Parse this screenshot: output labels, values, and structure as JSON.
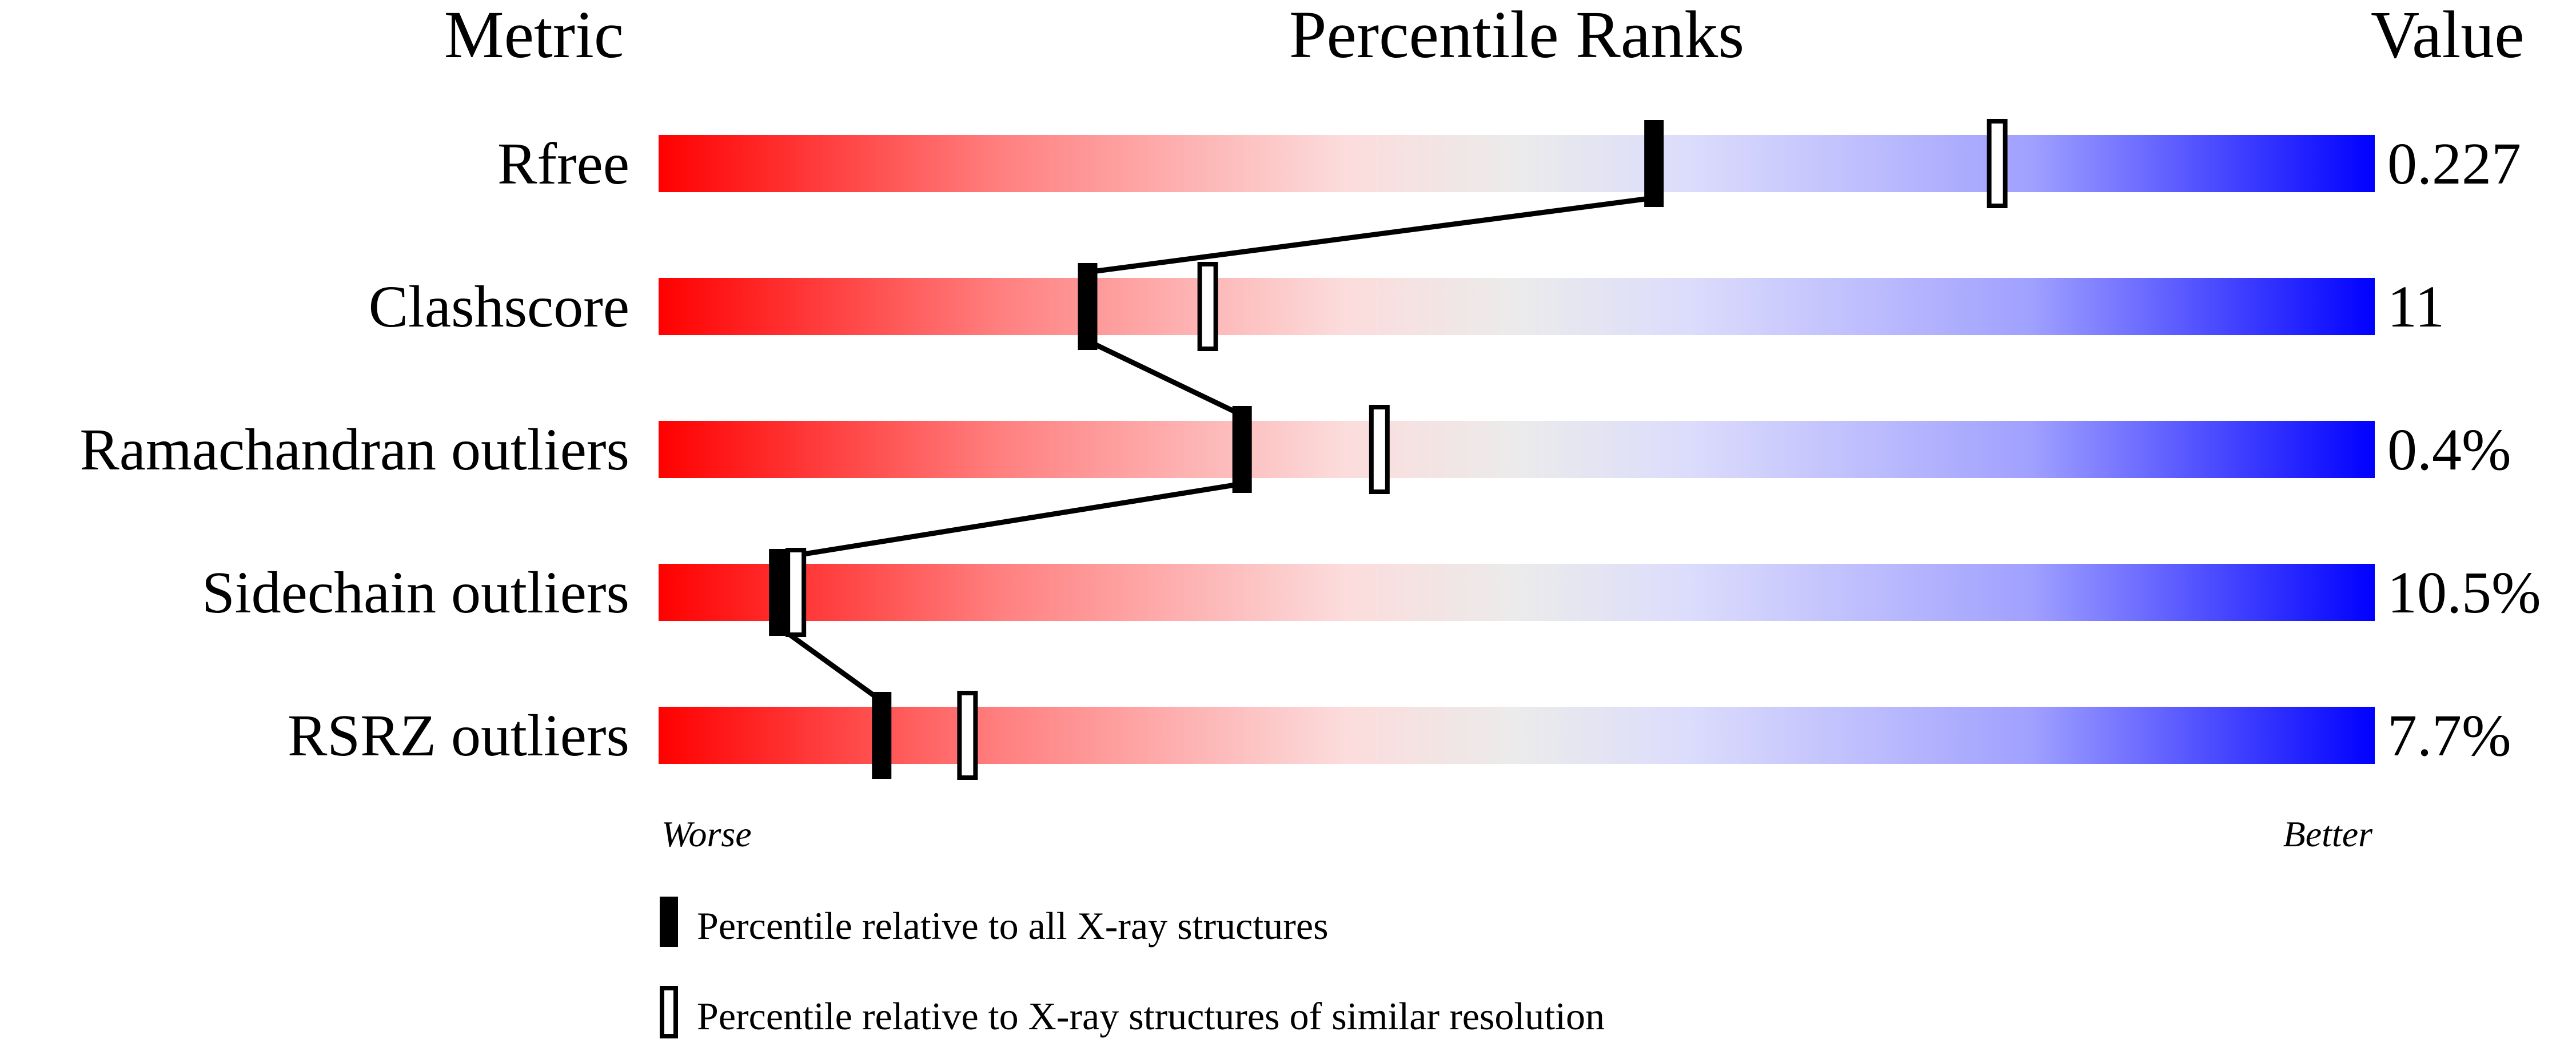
{
  "chart_data": {
    "type": "percentile-rank-bars",
    "headers": {
      "metric": "Metric",
      "ranks": "Percentile Ranks",
      "value": "Value"
    },
    "xlim": [
      0,
      100
    ],
    "axis_labels": {
      "left": "Worse",
      "right": "Better"
    },
    "gradient_colors": [
      "#ff0000",
      "#fcdcdc",
      "#ebebeb",
      "#dcdcfc",
      "#0000ff"
    ],
    "rows": [
      {
        "metric": "Rfree",
        "value": "0.227",
        "percentile_all": 58,
        "percentile_similar": 78
      },
      {
        "metric": "Clashscore",
        "value": "11",
        "percentile_all": 25,
        "percentile_similar": 32
      },
      {
        "metric": "Ramachandran outliers",
        "value": "0.4%",
        "percentile_all": 34,
        "percentile_similar": 42
      },
      {
        "metric": "Sidechain outliers",
        "value": "10.5%",
        "percentile_all": 7,
        "percentile_similar": 8
      },
      {
        "metric": "RSRZ outliers",
        "value": "7.7%",
        "percentile_all": 13,
        "percentile_similar": 18
      }
    ],
    "legend": [
      {
        "marker": "filled",
        "label": "Percentile relative to all X-ray structures"
      },
      {
        "marker": "open",
        "label": "Percentile relative to X-ray structures of similar resolution"
      }
    ]
  }
}
